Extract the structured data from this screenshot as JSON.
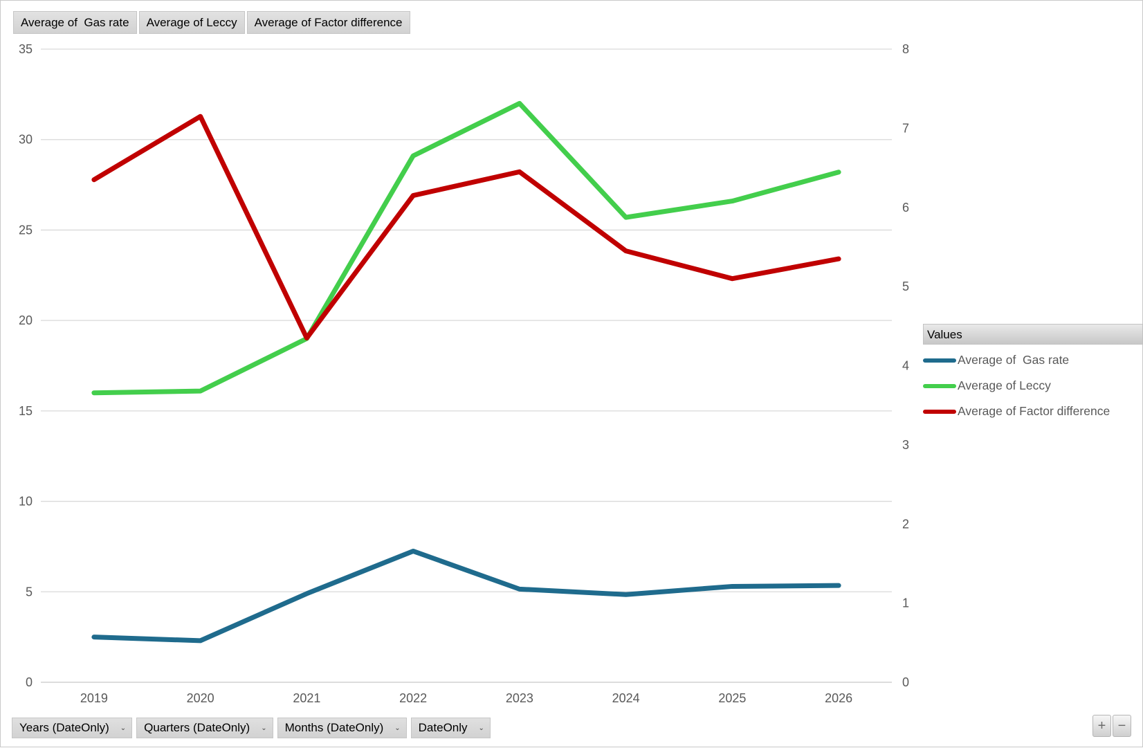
{
  "field_buttons_top": [
    {
      "label": "Average of  Gas rate"
    },
    {
      "label": "Average of Leccy"
    },
    {
      "label": "Average of Factor difference"
    }
  ],
  "legend": {
    "header": "Values"
  },
  "axis_field_buttons": [
    {
      "label": "Years (DateOnly)"
    },
    {
      "label": "Quarters (DateOnly)"
    },
    {
      "label": "Months (DateOnly)"
    },
    {
      "label": "DateOnly"
    }
  ],
  "zoom_controls": {
    "plus": "+",
    "minus": "−"
  },
  "colors": {
    "gridline": "#d9d9d9",
    "axis_line": "#c6c6c6",
    "axis_text": "#595959"
  },
  "chart_data": {
    "type": "line",
    "title": "",
    "categories": [
      "2019",
      "2020",
      "2021",
      "2022",
      "2023",
      "2024",
      "2025",
      "2026"
    ],
    "series": [
      {
        "name": "Average of  Gas rate",
        "axis": "left",
        "color": "#1f6b8d",
        "values": [
          2.5,
          2.3,
          4.9,
          7.25,
          5.15,
          4.85,
          5.3,
          5.35
        ]
      },
      {
        "name": "Average of Leccy",
        "axis": "left",
        "color": "#43ce4c",
        "values": [
          16.0,
          16.1,
          19.0,
          29.1,
          32.0,
          25.7,
          26.6,
          28.2
        ]
      },
      {
        "name": "Average of Factor difference",
        "axis": "right",
        "color": "#c00000",
        "values": [
          6.35,
          7.15,
          4.35,
          6.15,
          6.45,
          5.45,
          5.1,
          5.35
        ]
      }
    ],
    "left_axis": {
      "min": 0,
      "max": 35,
      "ticks": [
        0,
        5,
        10,
        15,
        20,
        25,
        30,
        35
      ]
    },
    "right_axis": {
      "min": 0,
      "max": 8,
      "ticks": [
        0,
        1,
        2,
        3,
        4,
        5,
        6,
        7,
        8
      ]
    },
    "grid": true,
    "legend_position": "right"
  }
}
